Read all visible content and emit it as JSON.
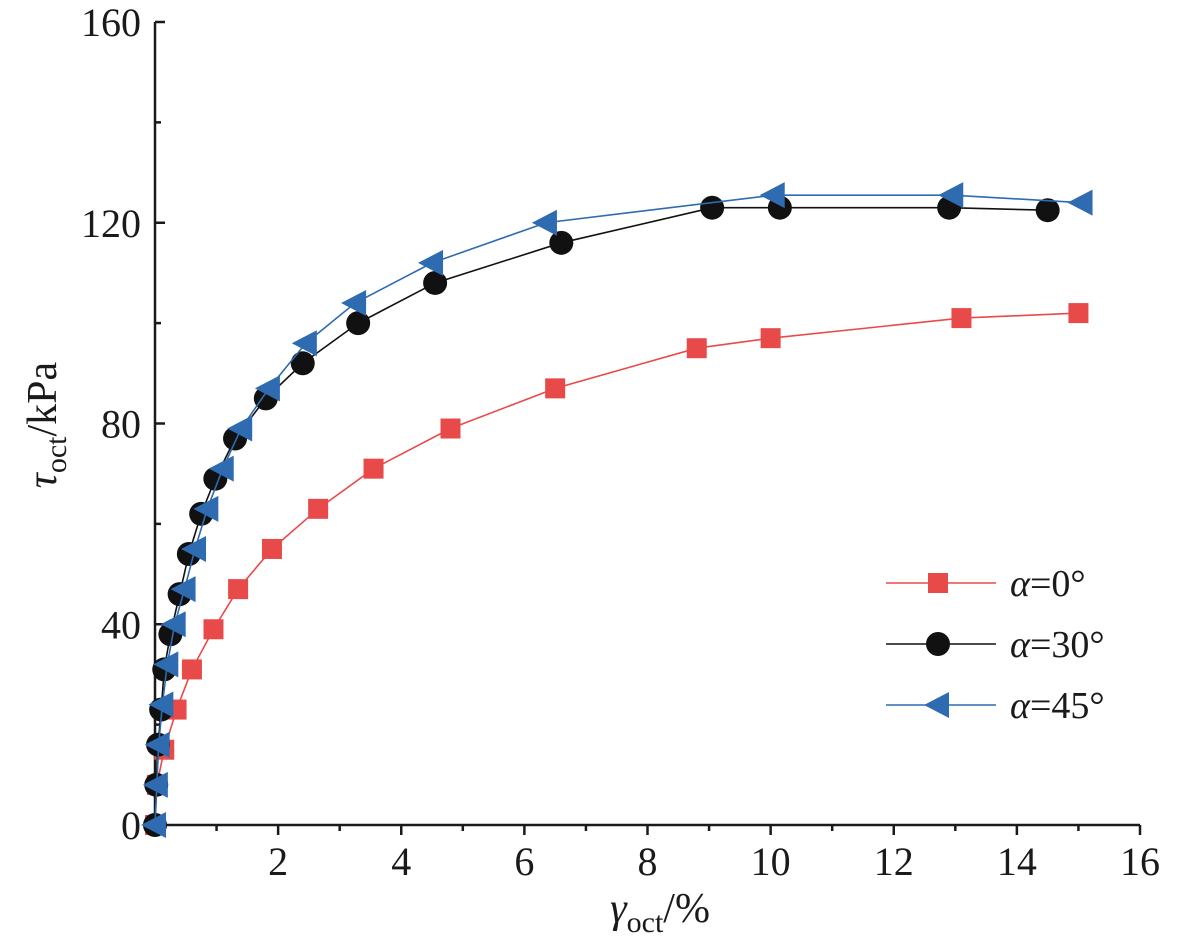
{
  "chart_data": {
    "type": "line",
    "xlabel": {
      "symbol": "γ",
      "subscript": "oct",
      "unit": "/%"
    },
    "ylabel": {
      "symbol": "τ",
      "subscript": "oct",
      "unit": "/kPa"
    },
    "xlim": [
      0,
      16
    ],
    "ylim": [
      0,
      160
    ],
    "xticks": [
      2,
      4,
      6,
      8,
      10,
      12,
      14,
      16
    ],
    "xtick_labels": [
      "2",
      "4",
      "6",
      "8",
      "10",
      "12",
      "14",
      "16"
    ],
    "yticks": [
      0,
      40,
      80,
      120,
      160
    ],
    "ytick_labels": [
      "0",
      "40",
      "80",
      "120",
      "160"
    ],
    "grid": false,
    "legend_position": "right-middle",
    "series": [
      {
        "name": "α=0°",
        "legend_symbol": "α",
        "legend_value": "=0°",
        "color": "#e84a4a",
        "marker": "square",
        "x": [
          0,
          0.03,
          0.15,
          0.35,
          0.6,
          0.95,
          1.35,
          1.9,
          2.65,
          3.55,
          4.8,
          6.5,
          8.8,
          10.0,
          13.1,
          15.0
        ],
        "y": [
          0,
          8,
          15,
          23,
          31,
          39,
          47,
          55,
          63,
          71,
          79,
          87,
          95,
          97,
          101,
          102
        ]
      },
      {
        "name": "α=30°",
        "legend_symbol": "α",
        "legend_value": "=30°",
        "color": "#111111",
        "marker": "circle",
        "x": [
          0,
          0.02,
          0.05,
          0.1,
          0.15,
          0.25,
          0.4,
          0.55,
          0.75,
          0.98,
          1.3,
          1.8,
          2.4,
          3.3,
          4.55,
          6.6,
          9.05,
          10.15,
          12.9,
          14.5
        ],
        "y": [
          0,
          8,
          16,
          23,
          31,
          38,
          46,
          54,
          62,
          69,
          77,
          85,
          92,
          100,
          108,
          116,
          123,
          123,
          123,
          122.5
        ]
      },
      {
        "name": "α=45°",
        "legend_symbol": "α",
        "legend_value": "=45°",
        "color": "#2e6bb0",
        "marker": "triangle-left",
        "x": [
          0,
          0.03,
          0.06,
          0.12,
          0.2,
          0.32,
          0.48,
          0.65,
          0.85,
          1.1,
          1.4,
          1.85,
          2.45,
          3.25,
          4.5,
          6.35,
          10.05,
          12.95,
          15.05
        ],
        "y": [
          0,
          8,
          16,
          24,
          32,
          40,
          47,
          55,
          63,
          71,
          79,
          87,
          96,
          104,
          112,
          120,
          125.5,
          125.5,
          124
        ]
      }
    ]
  }
}
